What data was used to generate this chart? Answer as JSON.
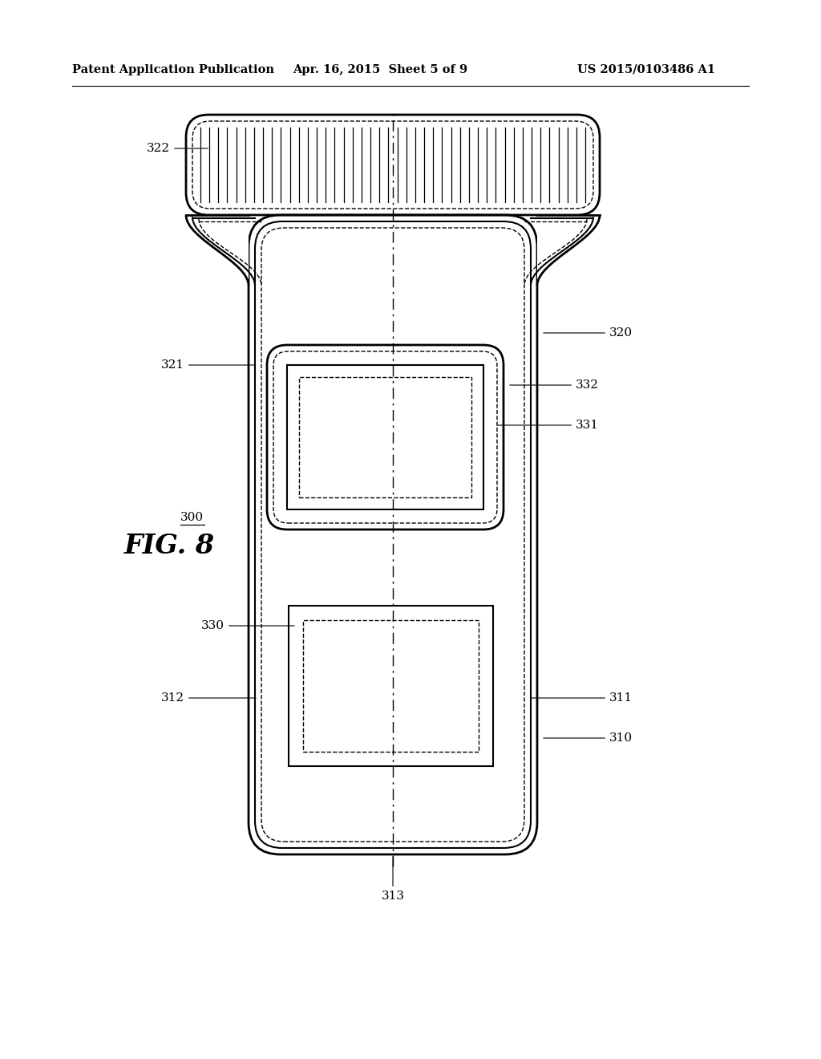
{
  "bg_color": "#ffffff",
  "header_left": "Patent Application Publication",
  "header_mid": "Apr. 16, 2015  Sheet 5 of 9",
  "header_right": "US 2015/0103486 A1",
  "fig_label": "FIG. 8"
}
